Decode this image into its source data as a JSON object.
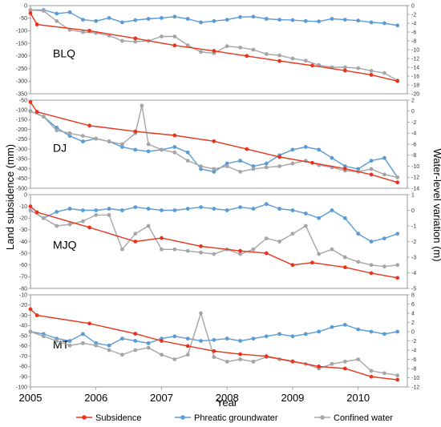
{
  "chart_data": {
    "type": "line",
    "xlabel": "Year",
    "ylabel_left": "Land  subsidence (mm)",
    "ylabel_right": "Water-level variation (m)",
    "x_ticks": [
      "2005",
      "2006",
      "2007",
      "2008",
      "2009",
      "2010"
    ],
    "xlim": [
      2005.0,
      2010.75
    ],
    "legend": {
      "placement": "bottom",
      "entries": [
        {
          "key": "subsidence",
          "label": "Subsidence",
          "color": "#e8341c"
        },
        {
          "key": "phreatic",
          "label": "Phreatic groundwater",
          "color": "#5b9bd5"
        },
        {
          "key": "confined",
          "label": "Confined water",
          "color": "#a5a5a5"
        }
      ]
    },
    "panels": [
      {
        "label": "BLQ",
        "left_ylim": [
          -350,
          0
        ],
        "left_ticks": [
          "0",
          "-50",
          "-100",
          "-150",
          "-200",
          "-250",
          "-300",
          "-350"
        ],
        "left_tick_values": [
          0,
          -50,
          -100,
          -150,
          -200,
          -250,
          -300,
          -350
        ],
        "right_ylim": [
          -20,
          0
        ],
        "right_ticks": [
          "0",
          "-2",
          "-4",
          "-6",
          "-8",
          "-10",
          "-12",
          "-14",
          "-16",
          "-18",
          "-20"
        ],
        "right_tick_values": [
          0,
          -2,
          -4,
          -6,
          -8,
          -10,
          -12,
          -14,
          -16,
          -18,
          -20
        ],
        "subsidence": {
          "x": [
            2005.0,
            2005.1,
            2005.9,
            2006.6,
            2007.2,
            2007.8,
            2008.3,
            2008.8,
            2009.3,
            2009.8,
            2010.2,
            2010.6
          ],
          "y": [
            -30,
            -75,
            -100,
            -130,
            -158,
            -180,
            -200,
            -220,
            -238,
            -258,
            -275,
            -300
          ]
        },
        "phreatic": {
          "x": [
            2005.0,
            2005.2,
            2005.4,
            2005.6,
            2005.8,
            2006.0,
            2006.2,
            2006.4,
            2006.6,
            2006.8,
            2007.0,
            2007.2,
            2007.4,
            2007.6,
            2007.8,
            2008.0,
            2008.2,
            2008.4,
            2008.6,
            2008.8,
            2009.0,
            2009.2,
            2009.4,
            2009.6,
            2009.8,
            2010.0,
            2010.2,
            2010.4,
            2010.6
          ],
          "y": [
            -1.0,
            -1.0,
            -1.8,
            -1.5,
            -3.2,
            -3.5,
            -2.8,
            -3.8,
            -3.3,
            -3.0,
            -2.8,
            -2.5,
            -3.0,
            -3.8,
            -3.5,
            -3.2,
            -2.6,
            -2.5,
            -3.0,
            -3.2,
            -3.3,
            -3.5,
            -3.6,
            -3.0,
            -3.2,
            -3.4,
            -3.8,
            -4.0,
            -4.5
          ]
        },
        "confined": {
          "x": [
            2005.0,
            2005.2,
            2005.4,
            2005.6,
            2005.8,
            2006.0,
            2006.2,
            2006.4,
            2006.6,
            2006.8,
            2007.0,
            2007.2,
            2007.4,
            2007.6,
            2007.8,
            2008.0,
            2008.2,
            2008.4,
            2008.6,
            2008.8,
            2009.0,
            2009.2,
            2009.4,
            2009.6,
            2009.8,
            2010.0,
            2010.2,
            2010.4,
            2010.6
          ],
          "y": [
            -1.0,
            -1.2,
            -3.5,
            -5.5,
            -6.0,
            -6.2,
            -6.8,
            -8.0,
            -8.2,
            -8.0,
            -7.0,
            -7.0,
            -9.0,
            -10.5,
            -10.8,
            -9.2,
            -9.5,
            -10.0,
            -11.0,
            -11.3,
            -12.0,
            -12.5,
            -13.5,
            -14.0,
            -14.0,
            -14.2,
            -14.8,
            -15.3,
            -17.0
          ]
        }
      },
      {
        "label": "DJ",
        "left_ylim": [
          -500,
          -50
        ],
        "left_ticks": [
          "-50",
          "-100",
          "-150",
          "-200",
          "-250",
          "-300",
          "-350",
          "-400",
          "-450",
          "-500"
        ],
        "left_tick_values": [
          -50,
          -100,
          -150,
          -200,
          -250,
          -300,
          -350,
          -400,
          -450,
          -500
        ],
        "right_ylim": [
          -14,
          2
        ],
        "right_ticks": [
          "2",
          "0",
          "-2",
          "-4",
          "-6",
          "-8",
          "-10",
          "-12",
          "-14"
        ],
        "right_tick_values": [
          2,
          0,
          -2,
          -4,
          -6,
          -8,
          -10,
          -12,
          -14
        ],
        "subsidence": {
          "x": [
            2005.0,
            2005.1,
            2005.9,
            2006.6,
            2007.2,
            2007.8,
            2008.3,
            2008.8,
            2009.3,
            2009.8,
            2010.2,
            2010.6
          ],
          "y": [
            -60,
            -110,
            -180,
            -210,
            -230,
            -260,
            -300,
            -340,
            -370,
            -400,
            -430,
            -470
          ]
        },
        "phreatic": {
          "x": [
            2005.0,
            2005.2,
            2005.4,
            2005.6,
            2005.8,
            2006.0,
            2006.2,
            2006.4,
            2006.6,
            2006.8,
            2007.0,
            2007.2,
            2007.4,
            2007.6,
            2007.8,
            2008.0,
            2008.2,
            2008.4,
            2008.6,
            2008.8,
            2009.0,
            2009.2,
            2009.4,
            2009.6,
            2009.8,
            2010.0,
            2010.2,
            2010.4,
            2010.6
          ],
          "y": [
            0.0,
            -1.0,
            -3.0,
            -4.5,
            -5.5,
            -5.0,
            -5.5,
            -6.5,
            -7.0,
            -7.3,
            -7.0,
            -6.5,
            -7.5,
            -10.5,
            -11.0,
            -9.5,
            -9.0,
            -10.0,
            -9.5,
            -8.0,
            -7.0,
            -6.5,
            -7.0,
            -8.5,
            -10.0,
            -10.5,
            -9.0,
            -8.5,
            -12.0
          ]
        },
        "confined": {
          "x": [
            2005.0,
            2005.2,
            2005.4,
            2005.6,
            2005.8,
            2006.0,
            2006.2,
            2006.4,
            2006.6,
            2006.7,
            2006.8,
            2007.0,
            2007.2,
            2007.4,
            2007.6,
            2007.8,
            2008.0,
            2008.2,
            2008.4,
            2008.6,
            2008.8,
            2009.0,
            2009.2,
            2009.4,
            2009.6,
            2009.8,
            2010.0,
            2010.2,
            2010.4,
            2010.6
          ],
          "y": [
            0.0,
            -1.0,
            -3.5,
            -4.0,
            -4.5,
            -5.0,
            -5.5,
            -6.0,
            -4.0,
            1.0,
            -6.0,
            -7.0,
            -7.5,
            -9.0,
            -10.0,
            -10.5,
            -10.0,
            -11.0,
            -10.5,
            -10.2,
            -10.0,
            -9.5,
            -9.0,
            -9.8,
            -10.2,
            -10.8,
            -11.0,
            -10.5,
            -11.5,
            -12.0
          ]
        }
      },
      {
        "label": "MJQ",
        "left_ylim": [
          -80,
          0
        ],
        "left_ticks": [
          "0",
          "-10",
          "-20",
          "-30",
          "-40",
          "-50",
          "-60",
          "-70",
          "-80"
        ],
        "left_tick_values": [
          0,
          -10,
          -20,
          -30,
          -40,
          -50,
          -60,
          -70,
          -80
        ],
        "right_ylim": [
          -5,
          1
        ],
        "right_ticks": [
          "1",
          "0",
          "-1",
          "-2",
          "-3",
          "-4",
          "-5"
        ],
        "right_tick_values": [
          1,
          0,
          -1,
          -2,
          -3,
          -4,
          -5
        ],
        "subsidence": {
          "x": [
            2005.0,
            2005.1,
            2005.9,
            2006.6,
            2007.0,
            2007.6,
            2008.2,
            2008.6,
            2009.0,
            2009.3,
            2009.8,
            2010.2,
            2010.6
          ],
          "y": [
            -10,
            -15,
            -28,
            -40,
            -37,
            -44,
            -48,
            -50,
            -60,
            -58,
            -62,
            -67,
            -71
          ]
        },
        "phreatic": {
          "x": [
            2005.0,
            2005.2,
            2005.4,
            2005.6,
            2005.8,
            2006.0,
            2006.2,
            2006.4,
            2006.6,
            2006.8,
            2007.0,
            2007.2,
            2007.4,
            2007.6,
            2007.8,
            2008.0,
            2008.2,
            2008.4,
            2008.6,
            2008.8,
            2009.0,
            2009.2,
            2009.4,
            2009.6,
            2009.8,
            2010.0,
            2010.2,
            2010.4,
            2010.6
          ],
          "y": [
            0.0,
            -0.5,
            -0.1,
            0.1,
            0.0,
            0.0,
            0.1,
            0.0,
            0.2,
            0.1,
            0.0,
            0.0,
            0.1,
            0.2,
            0.1,
            0.0,
            0.2,
            0.1,
            0.4,
            0.1,
            0.0,
            -0.2,
            -0.5,
            0.0,
            -0.5,
            -1.5,
            -2.0,
            -1.8,
            -1.5
          ]
        },
        "confined": {
          "x": [
            2005.0,
            2005.2,
            2005.4,
            2005.6,
            2005.8,
            2006.0,
            2006.2,
            2006.4,
            2006.6,
            2006.8,
            2007.0,
            2007.2,
            2007.4,
            2007.6,
            2007.8,
            2008.0,
            2008.2,
            2008.4,
            2008.6,
            2008.8,
            2009.0,
            2009.2,
            2009.4,
            2009.6,
            2009.8,
            2010.0,
            2010.2,
            2010.4,
            2010.6
          ],
          "y": [
            0.0,
            -0.5,
            -1.0,
            -0.9,
            -0.7,
            -0.3,
            -0.3,
            -2.5,
            -1.5,
            -1.0,
            -2.5,
            -2.5,
            -2.6,
            -2.7,
            -2.8,
            -2.5,
            -2.8,
            -2.5,
            -1.8,
            -2.0,
            -1.5,
            -1.0,
            -2.8,
            -2.5,
            -3.0,
            -3.3,
            -3.5,
            -3.6,
            -3.5
          ]
        }
      },
      {
        "label": "MT",
        "left_ylim": [
          -100,
          -10
        ],
        "left_ticks": [
          "-10",
          "-20",
          "-30",
          "-40",
          "-50",
          "-60",
          "-70",
          "-80",
          "-90",
          "-100"
        ],
        "left_tick_values": [
          -10,
          -20,
          -30,
          -40,
          -50,
          -60,
          -70,
          -80,
          -90,
          -100
        ],
        "right_ylim": [
          -12,
          8
        ],
        "right_ticks": [
          "8",
          "6",
          "4",
          "2",
          "0",
          "-2",
          "-4",
          "-6",
          "-8",
          "-10",
          "-12"
        ],
        "right_tick_values": [
          8,
          6,
          4,
          2,
          0,
          -2,
          -4,
          -6,
          -8,
          -10,
          -12
        ],
        "subsidence": {
          "x": [
            2005.0,
            2005.1,
            2005.9,
            2006.6,
            2007.0,
            2007.4,
            2007.8,
            2008.2,
            2008.6,
            2009.0,
            2009.4,
            2009.8,
            2010.2,
            2010.6
          ],
          "y": [
            -24,
            -30,
            -38,
            -48,
            -55,
            -60,
            -65,
            -68,
            -70,
            -75,
            -80,
            -82,
            -90,
            -93
          ]
        },
        "phreatic": {
          "x": [
            2005.0,
            2005.2,
            2005.4,
            2005.6,
            2005.8,
            2006.0,
            2006.2,
            2006.4,
            2006.6,
            2006.8,
            2007.0,
            2007.2,
            2007.4,
            2007.6,
            2007.8,
            2008.0,
            2008.2,
            2008.4,
            2008.6,
            2008.8,
            2009.0,
            2009.2,
            2009.4,
            2009.6,
            2009.8,
            2010.0,
            2010.2,
            2010.4,
            2010.6
          ],
          "y": [
            0.0,
            -0.5,
            -1.5,
            -2.0,
            -0.5,
            -2.5,
            -3.0,
            -1.5,
            -2.0,
            -2.5,
            -1.5,
            -1.0,
            -1.5,
            -2.0,
            -1.8,
            -1.5,
            -2.0,
            -1.5,
            -1.0,
            -0.5,
            -1.0,
            -0.5,
            0.0,
            1.0,
            1.5,
            0.5,
            0.0,
            -0.5,
            0.0
          ]
        },
        "confined": {
          "x": [
            2005.0,
            2005.2,
            2005.4,
            2005.6,
            2005.8,
            2006.0,
            2006.2,
            2006.4,
            2006.6,
            2006.8,
            2007.0,
            2007.2,
            2007.4,
            2007.6,
            2007.8,
            2008.0,
            2008.2,
            2008.4,
            2008.6,
            2008.8,
            2009.0,
            2009.2,
            2009.4,
            2009.6,
            2009.8,
            2010.0,
            2010.2,
            2010.4,
            2010.6
          ],
          "y": [
            0.0,
            -1.0,
            -2.0,
            -3.0,
            -2.5,
            -3.0,
            -4.0,
            -5.0,
            -4.0,
            -3.5,
            -5.0,
            -6.0,
            -5.0,
            4.0,
            -5.5,
            -6.5,
            -6.0,
            -6.5,
            -5.5,
            -6.0,
            -6.5,
            -7.0,
            -8.0,
            -7.0,
            -6.5,
            -6.0,
            -8.5,
            -9.0,
            -9.5
          ]
        }
      }
    ]
  }
}
